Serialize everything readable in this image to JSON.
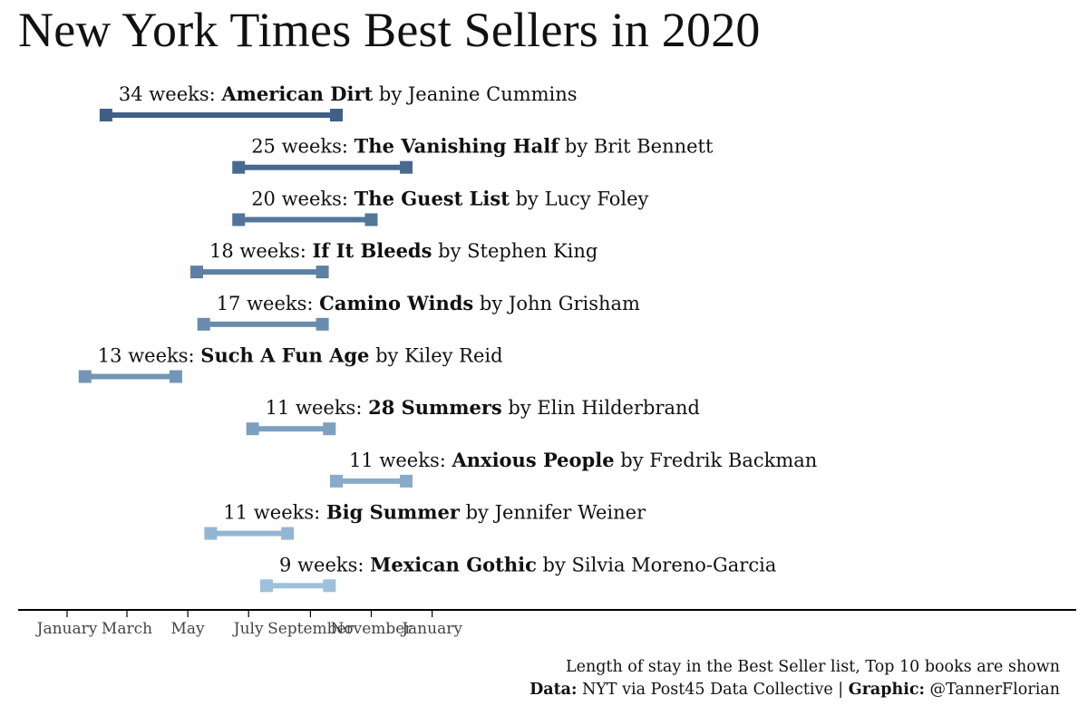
{
  "chart_data": {
    "type": "range-bar",
    "title": "New York Times Best Sellers in 2020",
    "x_axis": {
      "range": [
        "2020-01-01",
        "2021-03-15"
      ],
      "ticks": [
        {
          "date": "2020-01-01",
          "label": "January"
        },
        {
          "date": "2020-03-01",
          "label": "March"
        },
        {
          "date": "2020-05-01",
          "label": "May"
        },
        {
          "date": "2020-07-01",
          "label": "July"
        },
        {
          "date": "2020-09-01",
          "label": "September"
        },
        {
          "date": "2020-11-01",
          "label": "November"
        },
        {
          "date": "2021-01-01",
          "label": "January"
        }
      ]
    },
    "grid": false,
    "colors": {
      "darkest": "#3f5f87",
      "lightest": "#9dc1dc",
      "axis": "#000000",
      "text": "#111111"
    },
    "books": [
      {
        "weeks_text": "34 weeks:",
        "weeks": 34,
        "title": "American Dirt",
        "by_text": "by",
        "author": "Jeanine Cummins",
        "start": "2020-02-09",
        "end": "2020-09-27"
      },
      {
        "weeks_text": "25 weeks:",
        "weeks": 25,
        "title": "The Vanishing Half",
        "by_text": "by",
        "author": "Brit Bennett",
        "start": "2020-06-21",
        "end": "2020-12-06"
      },
      {
        "weeks_text": "20 weeks:",
        "weeks": 20,
        "title": "The Guest List",
        "by_text": "by",
        "author": "Lucy Foley",
        "start": "2020-06-21",
        "end": "2020-11-01"
      },
      {
        "weeks_text": "18 weeks:",
        "weeks": 18,
        "title": "If It Bleeds",
        "by_text": "by",
        "author": "Stephen King",
        "start": "2020-05-10",
        "end": "2020-09-13"
      },
      {
        "weeks_text": "17 weeks:",
        "weeks": 17,
        "title": "Camino Winds",
        "by_text": "by",
        "author": "John Grisham",
        "start": "2020-05-17",
        "end": "2020-09-13"
      },
      {
        "weeks_text": "13 weeks:",
        "weeks": 13,
        "title": "Such A Fun Age",
        "by_text": "by",
        "author": "Kiley Reid",
        "start": "2020-01-19",
        "end": "2020-04-19"
      },
      {
        "weeks_text": "11 weeks:",
        "weeks": 11,
        "title": "28 Summers",
        "by_text": "by",
        "author": "Elin Hilderbrand",
        "start": "2020-07-05",
        "end": "2020-09-20"
      },
      {
        "weeks_text": "11 weeks:",
        "weeks": 11,
        "title": "Anxious People",
        "by_text": "by",
        "author": "Fredrik Backman",
        "start": "2020-09-27",
        "end": "2020-12-06"
      },
      {
        "weeks_text": "11 weeks:",
        "weeks": 11,
        "title": "Big Summer",
        "by_text": "by",
        "author": "Jennifer Weiner",
        "start": "2020-05-24",
        "end": "2020-08-09"
      },
      {
        "weeks_text": "9 weeks:",
        "weeks": 9,
        "title": "Mexican Gothic",
        "by_text": "by",
        "author": "Silvia Moreno-Garcia",
        "start": "2020-07-19",
        "end": "2020-09-20"
      }
    ]
  },
  "caption": {
    "subtitle": "Length of stay in the Best Seller list, Top 10 books are shown",
    "data_label": "Data:",
    "data_source": " NYT via Post45 Data Collective | ",
    "graphic_label": "Graphic:",
    "graphic_author": " @TannerFlorian"
  }
}
